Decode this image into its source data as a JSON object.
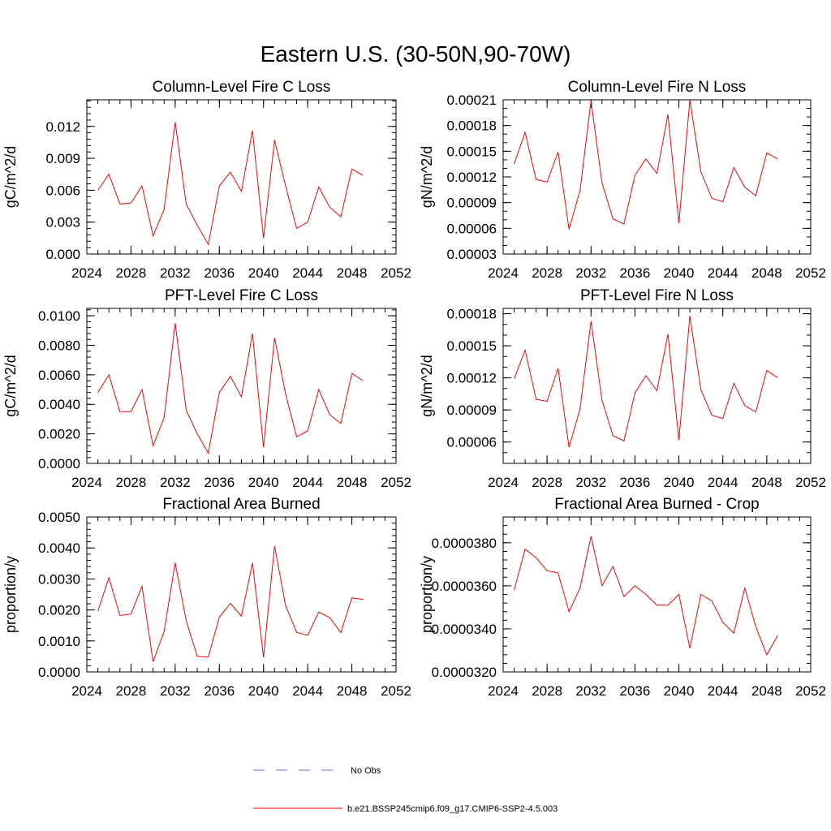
{
  "figure": {
    "title": "Eastern U.S. (30-50N,90-70W)",
    "colors": {
      "model_line": "#ff0000",
      "obs_line": "#6f6fd8",
      "axes": "#000000"
    },
    "legend": [
      {
        "label": "No Obs",
        "style": "dashed",
        "color_key": "obs_line"
      },
      {
        "label": "b.e21.BSSP245cmip6.f09_g17.CMIP6-SSP2-4.5.003",
        "style": "solid",
        "color_key": "model_line"
      }
    ]
  },
  "chart_data": [
    {
      "id": "col-fire-c",
      "type": "line",
      "title": "Column-Level Fire C Loss",
      "xlabel": "",
      "ylabel": "gC/m^2/d",
      "xlim": [
        2024,
        2052
      ],
      "ylim": [
        0,
        0.0145
      ],
      "xticks": [
        2024,
        2028,
        2032,
        2036,
        2040,
        2044,
        2048,
        2052
      ],
      "xtick_labels": [
        "2024",
        "2028",
        "2032",
        "2036",
        "2040",
        "2044",
        "2048",
        "2052"
      ],
      "x_minor_step": 1,
      "yticks": [
        0,
        0.003,
        0.006,
        0.009,
        0.012
      ],
      "ytick_labels": [
        "0.000",
        "0.003",
        "0.006",
        "0.009",
        "0.012"
      ],
      "y_minor_step": 0.0006,
      "x": [
        2025,
        2026,
        2027,
        2028,
        2029,
        2030,
        2031,
        2032,
        2033,
        2034,
        2035,
        2036,
        2037,
        2038,
        2039,
        2040,
        2041,
        2042,
        2043,
        2044,
        2045,
        2046,
        2047,
        2048,
        2049
      ],
      "series": [
        {
          "name": "b.e21.BSSP245cmip6.f09_g17.CMIP6-SSP2-4.5.003",
          "values": [
            0.006,
            0.0075,
            0.0047,
            0.0048,
            0.0064,
            0.0017,
            0.0042,
            0.0124,
            0.0047,
            0.0027,
            0.0009,
            0.0064,
            0.0077,
            0.0059,
            0.0116,
            0.0015,
            0.0107,
            0.0064,
            0.0024,
            0.003,
            0.0063,
            0.0044,
            0.0035,
            0.008,
            0.0074
          ]
        }
      ]
    },
    {
      "id": "col-fire-n",
      "type": "line",
      "title": "Column-Level Fire N Loss",
      "xlabel": "",
      "ylabel": "gN/m^2/d",
      "xlim": [
        2024,
        2052
      ],
      "ylim": [
        3e-05,
        0.00021
      ],
      "xticks": [
        2024,
        2028,
        2032,
        2036,
        2040,
        2044,
        2048,
        2052
      ],
      "xtick_labels": [
        "2024",
        "2028",
        "2032",
        "2036",
        "2040",
        "2044",
        "2048",
        "2052"
      ],
      "x_minor_step": 1,
      "yticks": [
        3e-05,
        6e-05,
        9e-05,
        0.00012,
        0.00015,
        0.00018,
        0.00021
      ],
      "ytick_labels": [
        "0.00003",
        "0.00006",
        "0.00009",
        "0.00012",
        "0.00015",
        "0.00018",
        "0.00021"
      ],
      "y_minor_step": 1e-05,
      "x": [
        2025,
        2026,
        2027,
        2028,
        2029,
        2030,
        2031,
        2032,
        2033,
        2034,
        2035,
        2036,
        2037,
        2038,
        2039,
        2040,
        2041,
        2042,
        2043,
        2044,
        2045,
        2046,
        2047,
        2048,
        2049
      ],
      "series": [
        {
          "name": "b.e21.BSSP245cmip6.f09_g17.CMIP6-SSP2-4.5.003",
          "values": [
            0.000135,
            0.000172,
            0.000117,
            0.000114,
            0.000149,
            5.9e-05,
            0.000104,
            0.000209,
            0.000113,
            7.1e-05,
            6.5e-05,
            0.000122,
            0.000141,
            0.000124,
            0.000193,
            6.6e-05,
            0.00021,
            0.000126,
            9.5e-05,
            9.1e-05,
            0.000131,
            0.000108,
            9.8e-05,
            0.000148,
            0.000141
          ]
        }
      ]
    },
    {
      "id": "pft-fire-c",
      "type": "line",
      "title": "PFT-Level Fire C Loss",
      "xlabel": "",
      "ylabel": "gC/m^2/d",
      "xlim": [
        2024,
        2052
      ],
      "ylim": [
        0,
        0.0105
      ],
      "xticks": [
        2024,
        2028,
        2032,
        2036,
        2040,
        2044,
        2048,
        2052
      ],
      "xtick_labels": [
        "2024",
        "2028",
        "2032",
        "2036",
        "2040",
        "2044",
        "2048",
        "2052"
      ],
      "x_minor_step": 1,
      "yticks": [
        0,
        0.002,
        0.004,
        0.006,
        0.008,
        0.01
      ],
      "ytick_labels": [
        "0.0000",
        "0.0020",
        "0.0040",
        "0.0060",
        "0.0080",
        "0.0100"
      ],
      "y_minor_step": 0.0004,
      "x": [
        2025,
        2026,
        2027,
        2028,
        2029,
        2030,
        2031,
        2032,
        2033,
        2034,
        2035,
        2036,
        2037,
        2038,
        2039,
        2040,
        2041,
        2042,
        2043,
        2044,
        2045,
        2046,
        2047,
        2048,
        2049
      ],
      "series": [
        {
          "name": "b.e21.BSSP245cmip6.f09_g17.CMIP6-SSP2-4.5.003",
          "values": [
            0.0048,
            0.006,
            0.0035,
            0.0035,
            0.005,
            0.0012,
            0.0031,
            0.0095,
            0.0036,
            0.002,
            0.0007,
            0.0048,
            0.0059,
            0.0045,
            0.0088,
            0.0011,
            0.0085,
            0.0047,
            0.0018,
            0.0022,
            0.005,
            0.0033,
            0.0027,
            0.0061,
            0.0056
          ]
        }
      ]
    },
    {
      "id": "pft-fire-n",
      "type": "line",
      "title": "PFT-Level Fire N Loss",
      "xlabel": "",
      "ylabel": "gN/m^2/d",
      "xlim": [
        2024,
        2052
      ],
      "ylim": [
        4e-05,
        0.000185
      ],
      "xticks": [
        2024,
        2028,
        2032,
        2036,
        2040,
        2044,
        2048,
        2052
      ],
      "xtick_labels": [
        "2024",
        "2028",
        "2032",
        "2036",
        "2040",
        "2044",
        "2048",
        "2052"
      ],
      "x_minor_step": 1,
      "yticks": [
        6e-05,
        9e-05,
        0.00012,
        0.00015,
        0.00018
      ],
      "ytick_labels": [
        "0.00006",
        "0.00009",
        "0.00012",
        "0.00015",
        "0.00018"
      ],
      "y_minor_step": 1e-05,
      "x": [
        2025,
        2026,
        2027,
        2028,
        2029,
        2030,
        2031,
        2032,
        2033,
        2034,
        2035,
        2036,
        2037,
        2038,
        2039,
        2040,
        2041,
        2042,
        2043,
        2044,
        2045,
        2046,
        2047,
        2048,
        2049
      ],
      "series": [
        {
          "name": "b.e21.BSSP245cmip6.f09_g17.CMIP6-SSP2-4.5.003",
          "values": [
            0.000119,
            0.000146,
            0.0001,
            9.8e-05,
            0.000129,
            5.5e-05,
            9.1e-05,
            0.000173,
            9.9e-05,
            6.6e-05,
            6.1e-05,
            0.000106,
            0.000122,
            0.000108,
            0.000161,
            6.2e-05,
            0.000178,
            0.000109,
            8.5e-05,
            8.2e-05,
            0.000115,
            9.4e-05,
            8.8e-05,
            0.000127,
            0.00012
          ]
        }
      ]
    },
    {
      "id": "frac-area-burned",
      "type": "line",
      "title": "Fractional Area Burned",
      "xlabel": "",
      "ylabel": "proportion/y",
      "xlim": [
        2024,
        2052
      ],
      "ylim": [
        0,
        0.005
      ],
      "xticks": [
        2024,
        2028,
        2032,
        2036,
        2040,
        2044,
        2048,
        2052
      ],
      "xtick_labels": [
        "2024",
        "2028",
        "2032",
        "2036",
        "2040",
        "2044",
        "2048",
        "2052"
      ],
      "x_minor_step": 1,
      "yticks": [
        0,
        0.001,
        0.002,
        0.003,
        0.004,
        0.005
      ],
      "ytick_labels": [
        "0.0000",
        "0.0010",
        "0.0020",
        "0.0030",
        "0.0040",
        "0.0050"
      ],
      "y_minor_step": 0.0002,
      "x": [
        2025,
        2026,
        2027,
        2028,
        2029,
        2030,
        2031,
        2032,
        2033,
        2034,
        2035,
        2036,
        2037,
        2038,
        2039,
        2040,
        2041,
        2042,
        2043,
        2044,
        2045,
        2046,
        2047,
        2048,
        2049
      ],
      "series": [
        {
          "name": "b.e21.BSSP245cmip6.f09_g17.CMIP6-SSP2-4.5.003",
          "values": [
            0.00196,
            0.00304,
            0.00182,
            0.00187,
            0.00276,
            0.00033,
            0.00131,
            0.00352,
            0.00165,
            0.0005,
            0.00048,
            0.00177,
            0.00221,
            0.0018,
            0.00352,
            0.00047,
            0.00406,
            0.00214,
            0.00128,
            0.00118,
            0.00193,
            0.00175,
            0.00127,
            0.00239,
            0.00234
          ]
        }
      ]
    },
    {
      "id": "frac-area-burned-crop",
      "type": "line",
      "title": "Fractional Area Burned - Crop",
      "xlabel": "",
      "ylabel": "proportion/y",
      "xlim": [
        2024,
        2052
      ],
      "ylim": [
        3.2e-05,
        3.92e-05
      ],
      "xticks": [
        2024,
        2028,
        2032,
        2036,
        2040,
        2044,
        2048,
        2052
      ],
      "xtick_labels": [
        "2024",
        "2028",
        "2032",
        "2036",
        "2040",
        "2044",
        "2048",
        "2052"
      ],
      "x_minor_step": 1,
      "yticks": [
        3.2e-05,
        3.4e-05,
        3.6e-05,
        3.8e-05
      ],
      "ytick_labels": [
        "0.0000320",
        "0.0000340",
        "0.0000360",
        "0.0000380"
      ],
      "y_minor_step": 4e-07,
      "x": [
        2025,
        2026,
        2027,
        2028,
        2029,
        2030,
        2031,
        2032,
        2033,
        2034,
        2035,
        2036,
        2037,
        2038,
        2039,
        2040,
        2041,
        2042,
        2043,
        2044,
        2045,
        2046,
        2047,
        2048,
        2049
      ],
      "series": [
        {
          "name": "b.e21.BSSP245cmip6.f09_g17.CMIP6-SSP2-4.5.003",
          "values": [
            3.58e-05,
            3.77e-05,
            3.73e-05,
            3.67e-05,
            3.66e-05,
            3.48e-05,
            3.59e-05,
            3.83e-05,
            3.6e-05,
            3.69e-05,
            3.55e-05,
            3.6e-05,
            3.56e-05,
            3.51e-05,
            3.51e-05,
            3.56e-05,
            3.31e-05,
            3.56e-05,
            3.53e-05,
            3.43e-05,
            3.38e-05,
            3.59e-05,
            3.41e-05,
            3.28e-05,
            3.37e-05
          ]
        }
      ]
    }
  ]
}
